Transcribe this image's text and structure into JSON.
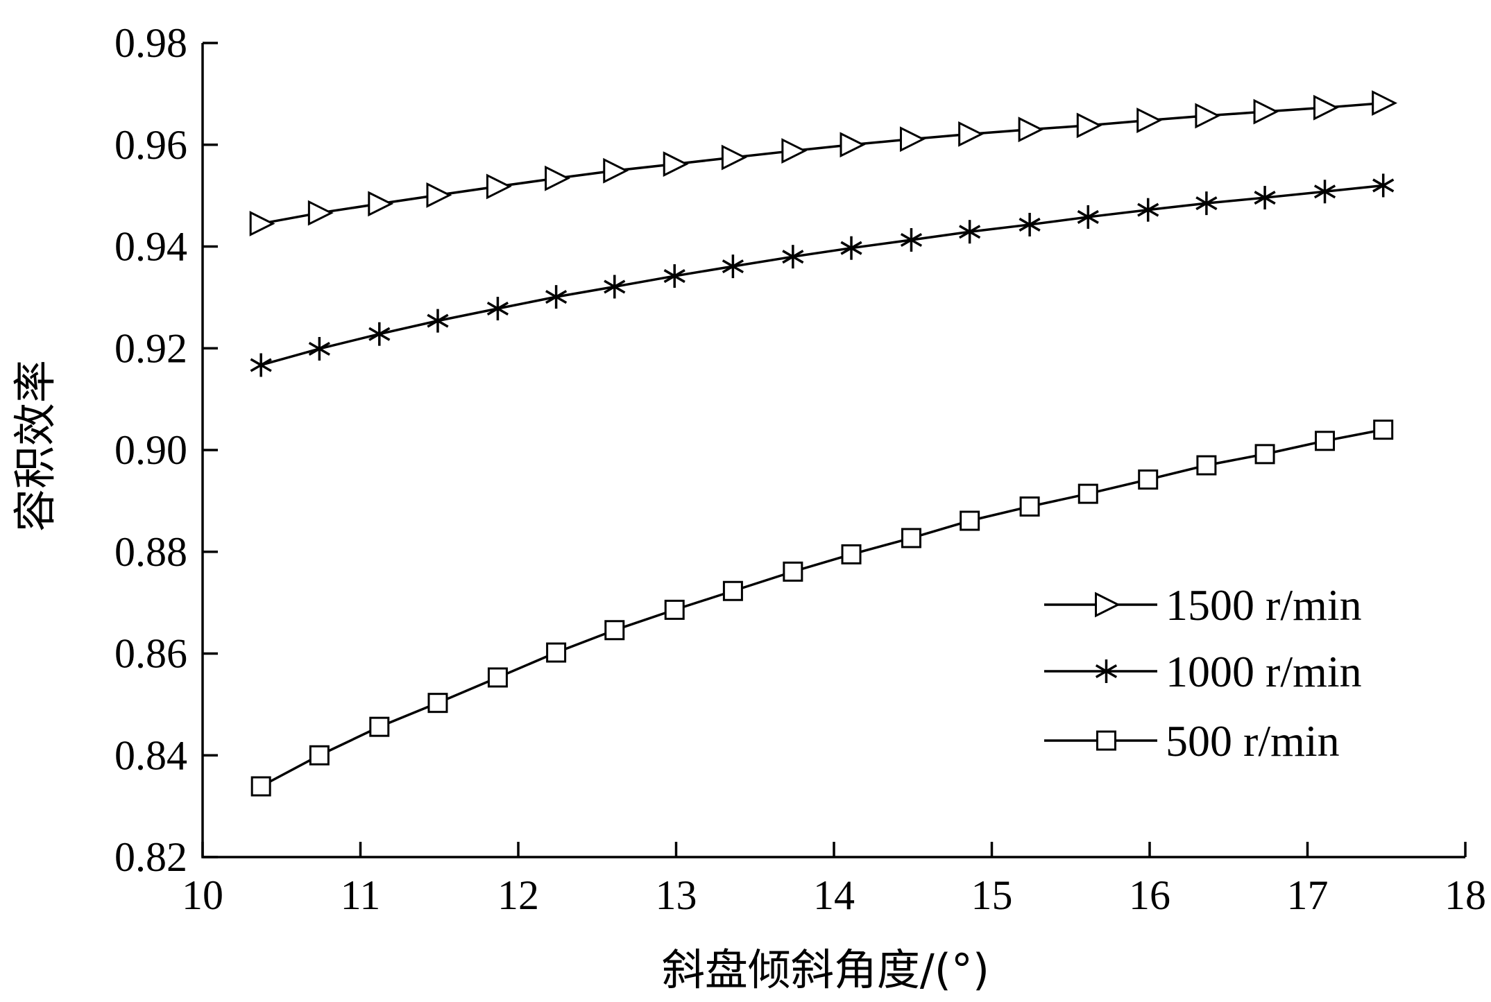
{
  "chart_data": {
    "type": "line",
    "title": "",
    "xlabel": "斜盘倾斜角度/(°)",
    "ylabel": "容积效率",
    "xlim": [
      10,
      18
    ],
    "ylim": [
      0.82,
      0.98
    ],
    "xticks": [
      "10",
      "11",
      "12",
      "13",
      "14",
      "15",
      "16",
      "17",
      "18"
    ],
    "yticks": [
      "0.82",
      "0.84",
      "0.86",
      "0.88",
      "0.90",
      "0.92",
      "0.94",
      "0.96",
      "0.98"
    ],
    "x": [
      10.37,
      10.74,
      11.12,
      11.49,
      11.87,
      12.24,
      12.61,
      12.99,
      13.36,
      13.74,
      14.11,
      14.49,
      14.86,
      15.24,
      15.61,
      15.99,
      16.36,
      16.73,
      17.11,
      17.48
    ],
    "legend_position": "right",
    "grid": false,
    "series": [
      {
        "name": "1500 r/min",
        "marker": "triangle-right",
        "values": [
          0.9445,
          0.9466,
          0.9484,
          0.9501,
          0.9518,
          0.9534,
          0.9549,
          0.9562,
          0.9575,
          0.9588,
          0.96,
          0.9611,
          0.9621,
          0.963,
          0.9638,
          0.9648,
          0.9657,
          0.9665,
          0.9673,
          0.9682
        ]
      },
      {
        "name": "1000 r/min",
        "marker": "asterisk",
        "values": [
          0.9167,
          0.9199,
          0.9228,
          0.9254,
          0.9278,
          0.9301,
          0.9321,
          0.9342,
          0.9361,
          0.938,
          0.9397,
          0.9413,
          0.9429,
          0.9443,
          0.9458,
          0.9472,
          0.9485,
          0.9496,
          0.9508,
          0.952
        ]
      },
      {
        "name": "500 r/min",
        "marker": "square",
        "values": [
          0.8339,
          0.84,
          0.8456,
          0.8503,
          0.8553,
          0.8602,
          0.8646,
          0.8686,
          0.8723,
          0.8761,
          0.8795,
          0.8827,
          0.8861,
          0.8889,
          0.8914,
          0.8942,
          0.897,
          0.8992,
          0.9018,
          0.904
        ]
      }
    ],
    "style": {
      "line_color": "#000000",
      "marker_fill": "#ffffff",
      "background": "#ffffff"
    }
  }
}
